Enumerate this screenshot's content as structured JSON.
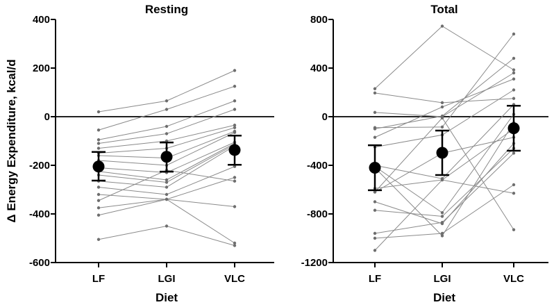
{
  "chart_data": [
    {
      "type": "line",
      "title": "Resting",
      "xlabel": "Diet",
      "ylabel": "Δ Energy Expenditure, kcal/d",
      "categories": [
        "LF",
        "LGI",
        "VLC"
      ],
      "ylim": [
        -600,
        400
      ],
      "yticks": [
        "400",
        "200",
        "0",
        "-200",
        "-400",
        "-600"
      ],
      "zero_line": 0,
      "individuals": [
        [
          20,
          65,
          190
        ],
        [
          -55,
          30,
          125
        ],
        [
          -95,
          -40,
          65
        ],
        [
          -110,
          -70,
          30
        ],
        [
          -130,
          -100,
          -35
        ],
        [
          -150,
          -130,
          -45
        ],
        [
          -160,
          -170,
          -60
        ],
        [
          -180,
          -200,
          -65
        ],
        [
          -210,
          -230,
          -105
        ],
        [
          -225,
          -260,
          -110
        ],
        [
          -240,
          -270,
          -115
        ],
        [
          -265,
          -290,
          -120
        ],
        [
          -290,
          -320,
          -205
        ],
        [
          -320,
          -340,
          -250
        ],
        [
          -345,
          -220,
          -265
        ],
        [
          -375,
          -340,
          -370
        ],
        [
          -405,
          -340,
          -520
        ],
        [
          -505,
          -450,
          -530
        ]
      ],
      "means": [
        -205,
        -165,
        -137
      ],
      "ci_low": [
        -263,
        -226,
        -198
      ],
      "ci_high": [
        -145,
        -106,
        -78
      ]
    },
    {
      "type": "line",
      "title": "Total",
      "xlabel": "Diet",
      "ylabel": "",
      "categories": [
        "LF",
        "LGI",
        "VLC"
      ],
      "ylim": [
        -1200,
        800
      ],
      "yticks": [
        "800",
        "400",
        "0",
        "-400",
        "-800",
        "-1200"
      ],
      "zero_line": 0,
      "individuals": [
        [
          230,
          745,
          385
        ],
        [
          195,
          115,
          150
        ],
        [
          35,
          0,
          360
        ],
        [
          -90,
          -85,
          680
        ],
        [
          -100,
          5,
          480
        ],
        [
          -170,
          80,
          310
        ],
        [
          -250,
          -150,
          220
        ],
        [
          -400,
          -510,
          100
        ],
        [
          -410,
          -790,
          20
        ],
        [
          -420,
          -980,
          -50
        ],
        [
          -590,
          -520,
          -100
        ],
        [
          -620,
          -300,
          -170
        ],
        [
          -700,
          -880,
          -220
        ],
        [
          -770,
          -820,
          -260
        ],
        [
          -960,
          -870,
          -300
        ],
        [
          -1000,
          -960,
          -560
        ],
        [
          -1100,
          -520,
          -630
        ],
        [
          -620,
          -10,
          -930
        ]
      ],
      "means": [
        -420,
        -297,
        -95
      ],
      "ci_low": [
        -605,
        -480,
        -280
      ],
      "ci_high": [
        -235,
        -114,
        90
      ]
    }
  ]
}
